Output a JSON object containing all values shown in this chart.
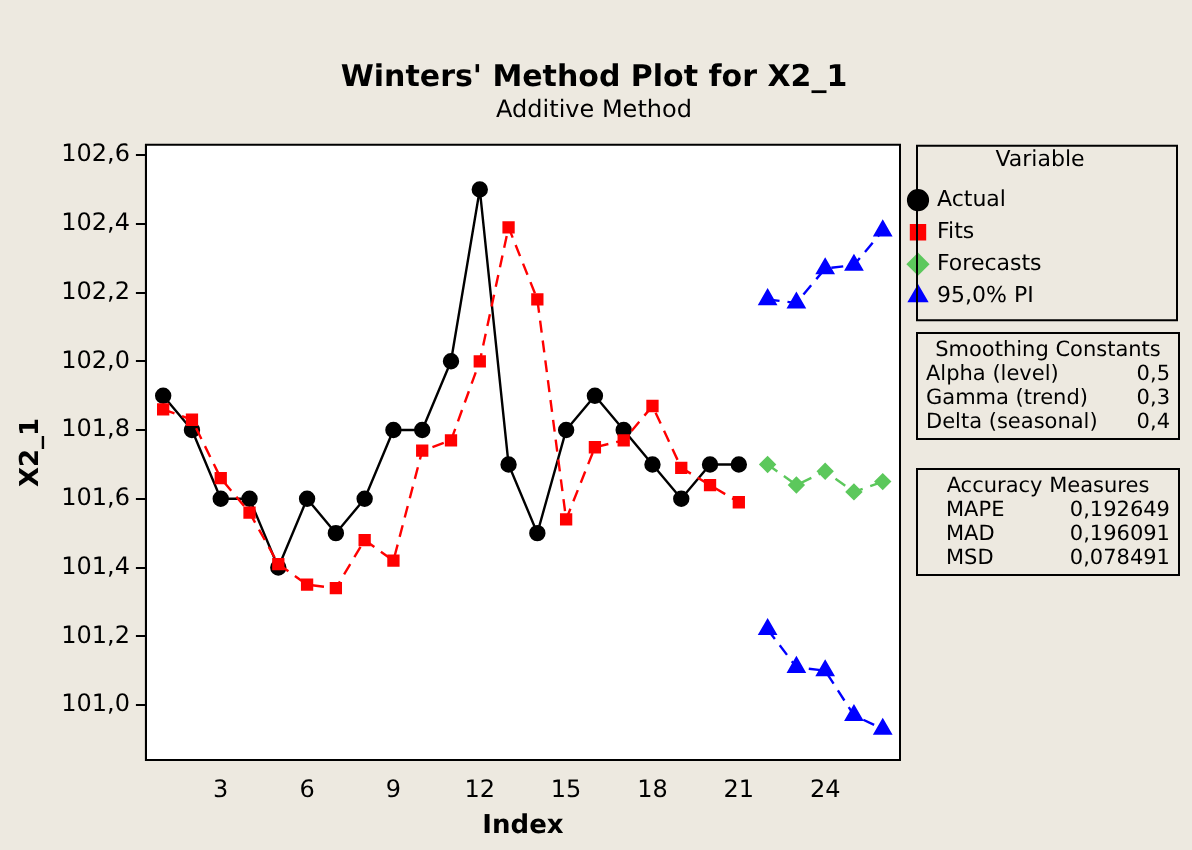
{
  "chart_data": {
    "type": "line",
    "title": "Winters' Method Plot for X2_1",
    "subtitle": "Additive Method",
    "xlabel": "Index",
    "ylabel": "X2_1",
    "legend_title": "Variable",
    "series": [
      {
        "name": "Actual",
        "color": "#000000",
        "marker": "circle",
        "line_style": "solid",
        "x": [
          1,
          2,
          3,
          4,
          5,
          6,
          7,
          8,
          9,
          10,
          11,
          12,
          13,
          14,
          15,
          16,
          17,
          18,
          19,
          20,
          21
        ],
        "values": [
          101.9,
          101.8,
          101.6,
          101.6,
          101.4,
          101.6,
          101.5,
          101.6,
          101.8,
          101.8,
          102.0,
          102.5,
          101.7,
          101.5,
          101.8,
          101.9,
          101.8,
          101.7,
          101.6,
          101.7,
          101.7
        ]
      },
      {
        "name": "Fits",
        "color": "#ff0000",
        "marker": "square",
        "line_style": "dashed",
        "x": [
          1,
          2,
          3,
          4,
          5,
          6,
          7,
          8,
          9,
          10,
          11,
          12,
          13,
          14,
          15,
          16,
          17,
          18,
          19,
          20,
          21
        ],
        "values": [
          101.86,
          101.83,
          101.66,
          101.56,
          101.41,
          101.35,
          101.34,
          101.48,
          101.42,
          101.74,
          101.77,
          102.0,
          102.39,
          102.18,
          101.54,
          101.75,
          101.77,
          101.87,
          101.69,
          101.64,
          101.59
        ]
      },
      {
        "name": "Forecasts",
        "color": "#5cc85c",
        "marker": "diamond",
        "line_style": "dashed",
        "x": [
          22,
          23,
          24,
          25,
          26
        ],
        "values": [
          101.7,
          101.64,
          101.68,
          101.62,
          101.65
        ]
      },
      {
        "name": "95,0% PI",
        "color": "#0000ff",
        "marker": "triangle",
        "line_style": "dashed",
        "x": [
          22,
          23,
          24,
          25,
          26
        ],
        "values": [
          102.18,
          102.17,
          102.27,
          102.28,
          102.38
        ]
      },
      {
        "color": "#0000ff",
        "marker": "triangle",
        "line_style": "dashed",
        "x": [
          22,
          23,
          24,
          25,
          26
        ],
        "values": [
          101.22,
          101.11,
          101.1,
          100.97,
          100.93
        ]
      }
    ],
    "xlim": [
      0.4,
      26.6
    ],
    "xticks": [
      3,
      6,
      9,
      12,
      15,
      18,
      21,
      24
    ],
    "ylim": [
      100.84,
      102.63
    ],
    "yticks": [
      {
        "value": 101.0,
        "label": "101,0"
      },
      {
        "value": 101.2,
        "label": "101,2"
      },
      {
        "value": 101.4,
        "label": "101,4"
      },
      {
        "value": 101.6,
        "label": "101,6"
      },
      {
        "value": 101.8,
        "label": "101,8"
      },
      {
        "value": 102.0,
        "label": "102,0"
      },
      {
        "value": 102.2,
        "label": "102,2"
      },
      {
        "value": 102.4,
        "label": "102,4"
      },
      {
        "value": 102.6,
        "label": "102,6"
      }
    ],
    "grid": false,
    "legend": "right",
    "annotations": [
      "Smoothing Constants",
      "Alpha (level)",
      "0,5",
      "Gamma (trend)",
      "0,3",
      "Delta (seasonal)",
      "0,4",
      "Accuracy Measures",
      "MAPE",
      "0,192649",
      "MAD",
      "0,196091",
      "MSD",
      "0,078491"
    ]
  }
}
